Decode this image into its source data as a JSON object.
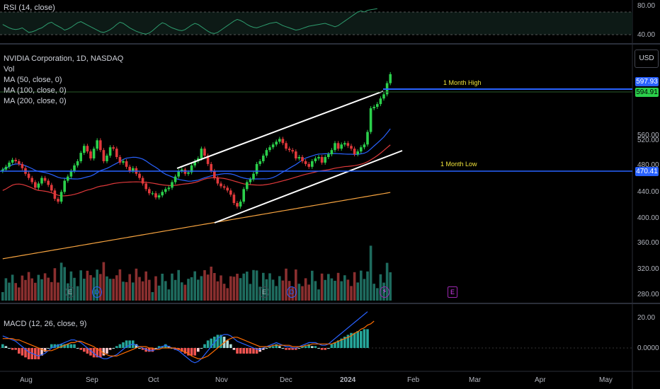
{
  "colors": {
    "background": "#000000",
    "up": "#26a69a",
    "down": "#ef5350",
    "candle_up": "#2bd04b",
    "candle_down": "#e0393b",
    "rsi": "#2e9c6e",
    "ma50": "#2962ff",
    "ma100": "#e0393b",
    "ma200": "#f7a440",
    "level": "#2962ff",
    "channel": "#ffffff",
    "level_label": "#f0e33a",
    "macd": "#2962ff",
    "signal": "#ff6d00"
  },
  "rsi_panel": {
    "legend": "RSI (14, close)",
    "upper_label": "80.00",
    "lower_label": "40.00"
  },
  "main_panel": {
    "title": "NVIDIA Corporation, 1D, NASDAQ",
    "vol_label": "Vol",
    "ma_labels": [
      "MA (50, close, 0)",
      "MA (100, close, 0)",
      "MA (200, close, 0)"
    ],
    "currency_button": "USD",
    "y_ticks": [
      "560.00",
      "520.00",
      "480.00",
      "440.00",
      "400.00",
      "360.00",
      "320.00",
      "280.00"
    ],
    "high_label": "1 Month High",
    "low_label": "1 Month Low",
    "high_tag": "597.93",
    "last_tag": "594.91",
    "low_tag": "470.41",
    "events": [
      "E",
      "D",
      "E",
      "D",
      "E"
    ]
  },
  "macd_panel": {
    "legend": "MACD (12, 26, close, 9)",
    "y_ticks": [
      "20.00",
      "0.0000"
    ]
  },
  "time_axis": [
    "Aug",
    "Sep",
    "Oct",
    "Nov",
    "Dec",
    "2024",
    "Feb",
    "Mar",
    "Apr",
    "May"
  ],
  "chart_data": {
    "type": "candlestick",
    "title": "NVIDIA Corporation, 1D, NASDAQ",
    "currency": "USD",
    "y_range": [
      270,
      610
    ],
    "x": [
      "Aug",
      "Sep",
      "Oct",
      "Nov",
      "Dec",
      "2024",
      "Feb",
      "Mar",
      "Apr",
      "May"
    ],
    "closes": [
      458,
      462,
      468,
      472,
      470,
      466,
      460,
      452,
      446,
      440,
      432,
      438,
      446,
      442,
      436,
      428,
      416,
      412,
      426,
      442,
      448,
      456,
      464,
      470,
      482,
      492,
      484,
      474,
      488,
      500,
      486,
      470,
      478,
      490,
      488,
      476,
      468,
      470,
      462,
      456,
      460,
      452,
      446,
      438,
      430,
      424,
      424,
      418,
      421,
      426,
      430,
      432,
      440,
      448,
      456,
      458,
      452,
      454,
      464,
      470,
      474,
      488,
      478,
      466,
      456,
      446,
      438,
      434,
      432,
      428,
      422,
      410,
      405,
      412,
      430,
      440,
      444,
      452,
      466,
      470,
      478,
      486,
      490,
      494,
      498,
      502,
      496,
      488,
      486,
      484,
      474,
      476,
      470,
      466,
      462,
      470,
      474,
      476,
      468,
      476,
      480,
      486,
      496,
      488,
      494,
      496,
      492,
      488,
      480,
      484,
      490,
      494,
      512,
      546,
      548,
      552,
      560,
      566,
      582,
      594.91
    ],
    "key_levels": {
      "one_month_high": 597.93,
      "one_month_low": 470.41,
      "last": 594.91
    },
    "rsi": [
      58,
      55,
      52,
      50,
      49,
      50,
      52,
      48,
      44,
      45,
      47,
      50,
      52,
      56,
      60,
      62,
      58,
      55,
      52,
      48,
      50,
      53,
      57,
      61,
      63,
      60,
      57,
      54,
      51,
      48,
      45,
      44,
      46,
      49,
      53,
      58,
      62,
      60,
      56,
      52,
      49,
      46,
      44,
      42,
      41,
      43,
      47,
      52,
      57,
      61,
      59,
      55,
      52,
      50,
      48,
      47,
      49,
      53,
      57,
      60,
      58,
      54,
      50,
      46,
      43,
      42,
      44,
      48,
      52,
      56,
      60,
      64,
      67,
      65,
      62,
      58,
      55,
      53,
      52,
      54,
      56,
      58,
      60,
      61,
      62,
      59,
      56,
      54,
      52,
      50,
      48,
      49,
      51,
      53,
      55,
      56,
      57,
      58,
      59,
      60,
      58,
      56,
      54,
      56,
      60,
      64,
      68,
      72,
      76,
      80,
      82,
      80,
      83,
      84,
      85,
      86
    ],
    "macd": [
      9,
      8,
      7,
      6,
      5,
      3,
      1,
      -1,
      -3,
      -4,
      -5,
      -6,
      -5,
      -4,
      -2,
      0,
      1,
      2,
      3,
      4,
      5,
      6,
      6,
      5,
      4,
      2,
      0,
      -2,
      -4,
      -6,
      -7,
      -8,
      -8,
      -7,
      -6,
      -5,
      -3,
      -1,
      1,
      2,
      3,
      2,
      1,
      0,
      -1,
      -2,
      -2,
      -1,
      0,
      1,
      2,
      1,
      0,
      -1,
      -2,
      -4,
      -6,
      -8,
      -10,
      -11,
      -10,
      -8,
      -5,
      -2,
      1,
      4,
      7,
      9,
      10,
      10,
      9,
      7,
      5,
      4,
      3,
      2,
      1,
      0,
      -1,
      -1,
      0,
      1,
      2,
      3,
      4,
      3,
      2,
      1,
      1,
      0,
      0,
      1,
      2,
      3,
      4,
      4,
      4,
      3,
      2,
      2,
      3,
      5,
      7,
      9,
      11,
      13,
      15,
      17,
      19,
      21,
      23,
      25,
      27
    ],
    "signal": [
      7,
      7,
      7,
      7,
      6,
      6,
      5,
      4,
      3,
      2,
      1,
      0,
      -1,
      -2,
      -2,
      -2,
      -1,
      0,
      1,
      2,
      3,
      4,
      4,
      5,
      5,
      4,
      3,
      2,
      1,
      -1,
      -2,
      -4,
      -5,
      -6,
      -6,
      -6,
      -5,
      -4,
      -3,
      -2,
      -1,
      0,
      1,
      1,
      1,
      0,
      0,
      -1,
      -1,
      0,
      0,
      0,
      0,
      0,
      -1,
      -2,
      -3,
      -4,
      -6,
      -7,
      -8,
      -8,
      -7,
      -6,
      -4,
      -2,
      0,
      2,
      4,
      6,
      7,
      8,
      8,
      7,
      6,
      5,
      4,
      3,
      2,
      1,
      1,
      1,
      1,
      2,
      2,
      2,
      2,
      2,
      2,
      1,
      1,
      1,
      1,
      2,
      2,
      3,
      3,
      3,
      3,
      3,
      3,
      3,
      4,
      5,
      6,
      7,
      8,
      9,
      11,
      12,
      14,
      15,
      17,
      18,
      20
    ]
  }
}
